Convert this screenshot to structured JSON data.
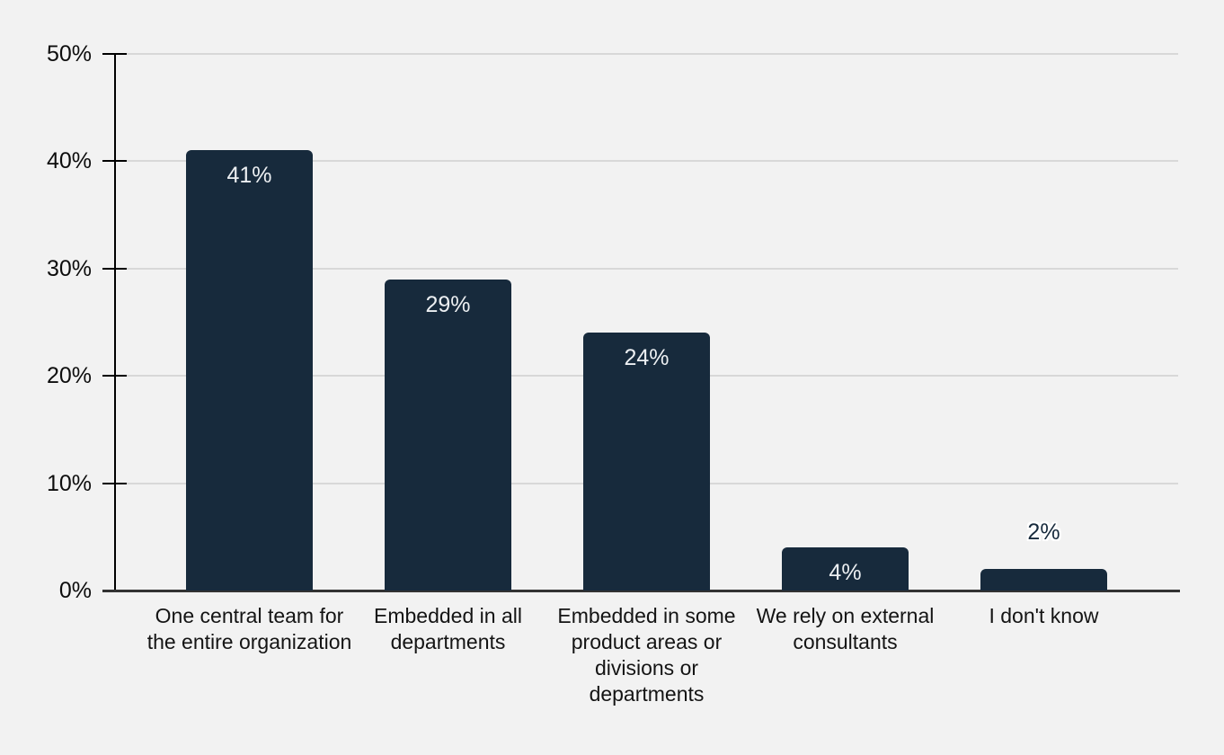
{
  "chart_data": {
    "type": "bar",
    "title": "",
    "xlabel": "",
    "ylabel": "",
    "categories": [
      "One central team for the entire organization",
      "Embedded in all departments",
      "Embedded in some product areas or divisions or departments",
      "We rely on external consultants",
      "I don't know"
    ],
    "values": [
      41,
      29,
      24,
      4,
      2
    ],
    "value_labels": [
      "41%",
      "29%",
      "24%",
      "4%",
      "2%"
    ],
    "value_label_positions": [
      "inside",
      "inside",
      "inside",
      "inside",
      "outside"
    ],
    "ylim": [
      0,
      50
    ],
    "yticks": [
      0,
      10,
      20,
      30,
      40,
      50
    ],
    "ytick_labels": [
      "0%",
      "10%",
      "20%",
      "30%",
      "40%",
      "50%"
    ],
    "grid": "horizontal",
    "legend": "none"
  },
  "colors": {
    "background": "#f2f2f2",
    "bar": "#172a3c",
    "gridline": "#d8d8d8",
    "y_axis": "#000000",
    "x_axis": "#333333",
    "tick_mark": "#000000",
    "tick_label_text": "#0d0d0d",
    "category_label_text": "#141414",
    "value_label_inside_text": "#eceff2",
    "value_label_outside_text": "#172a3c"
  }
}
